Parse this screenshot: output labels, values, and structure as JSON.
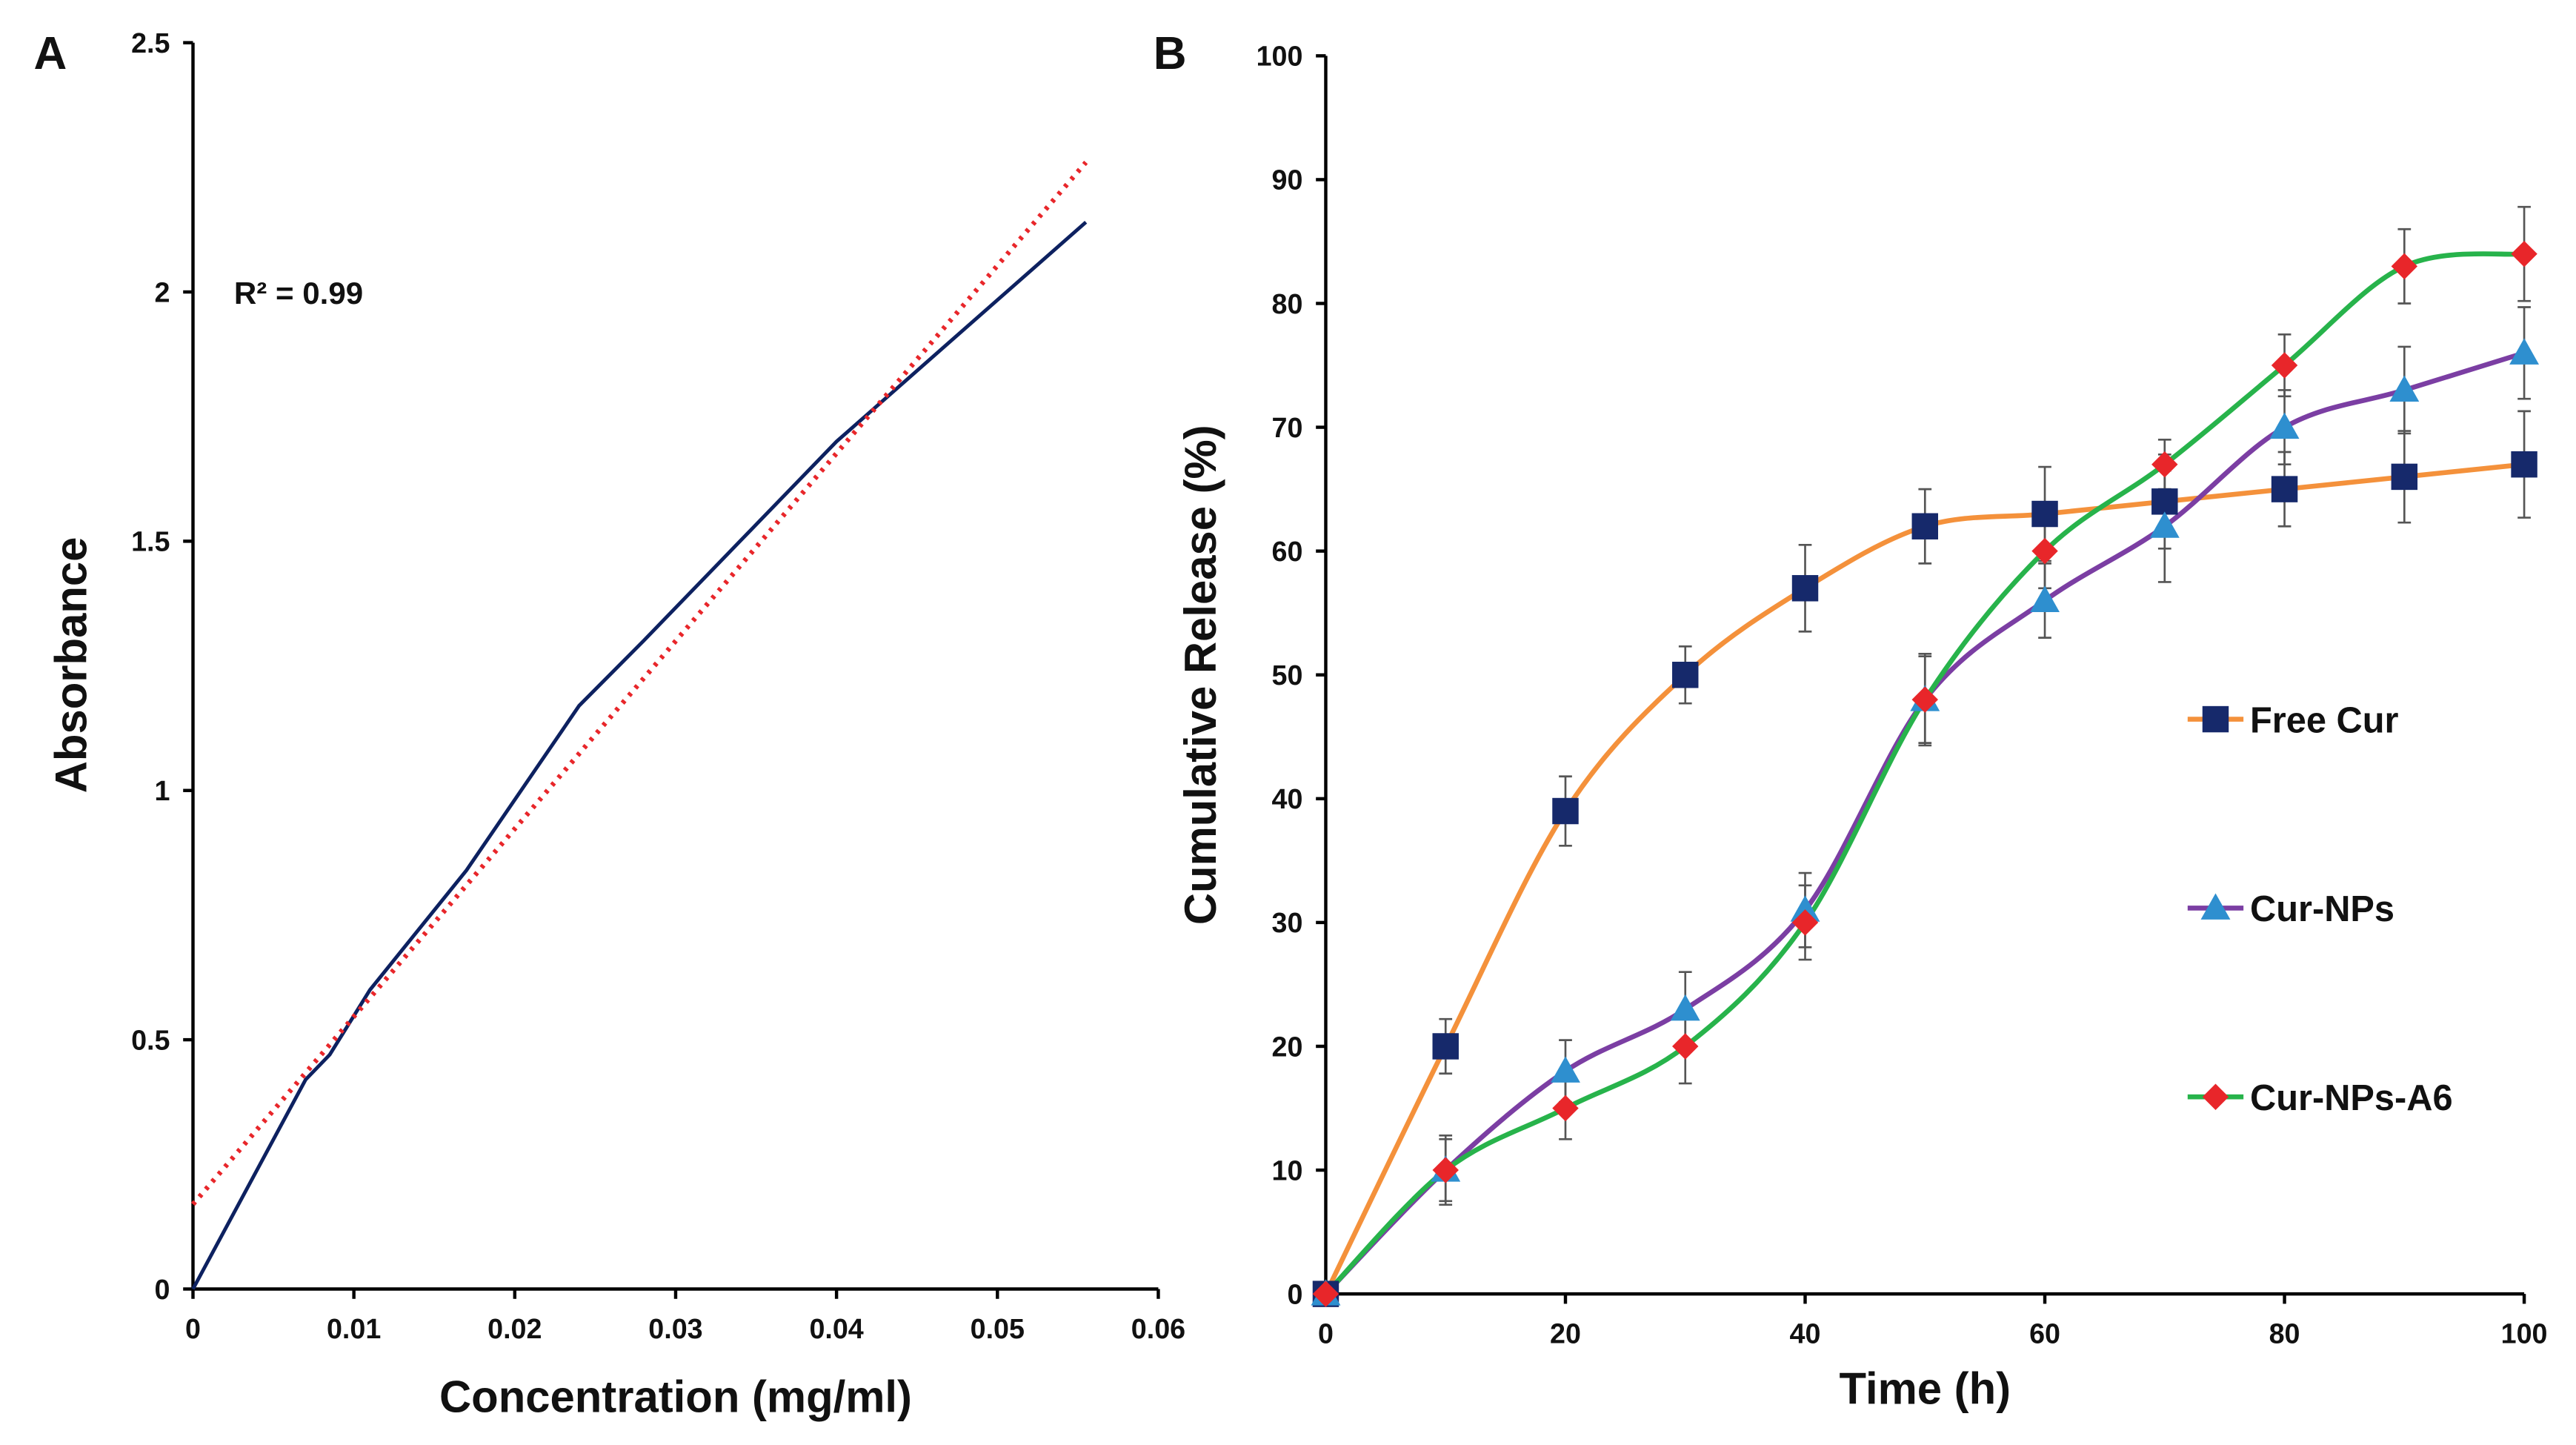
{
  "chart_data": [
    {
      "type": "line",
      "label": "A",
      "xlabel": "Concentration (mg/ml)",
      "ylabel": "Absorbance",
      "annotation": "R² = 0.99",
      "xlim": [
        0,
        0.06
      ],
      "xticks": [
        0,
        0.01,
        0.02,
        0.03,
        0.04,
        0.05,
        0.06
      ],
      "ylim": [
        0,
        2.5
      ],
      "yticks": [
        0,
        0.5,
        1,
        1.5,
        2,
        2.5
      ],
      "series": [
        {
          "color": "#0d2160",
          "style": "solid",
          "x": [
            0,
            0.007,
            0.0085,
            0.011,
            0.017,
            0.024,
            0.028,
            0.034,
            0.04,
            0.0555
          ],
          "values": [
            0,
            0.42,
            0.47,
            0.6,
            0.84,
            1.17,
            1.3,
            1.5,
            1.7,
            2.14
          ]
        },
        {
          "color": "#e8262a",
          "style": "dotted",
          "x": [
            0,
            0.0555
          ],
          "values": [
            0.17,
            2.26
          ]
        }
      ]
    },
    {
      "type": "line",
      "label": "B",
      "xlabel": "Time (h)",
      "ylabel": "Cumulative Release (%)",
      "legend": "right",
      "xlim": [
        0,
        100
      ],
      "xticks": [
        0,
        20,
        40,
        60,
        80,
        100
      ],
      "ylim": [
        0,
        100
      ],
      "yticks": [
        0,
        10,
        20,
        30,
        40,
        50,
        60,
        70,
        80,
        90,
        100
      ],
      "x": [
        0,
        10,
        20,
        30,
        40,
        50,
        60,
        70,
        80,
        90,
        100
      ],
      "series": [
        {
          "name": "Free Cur",
          "color": "#f4913b",
          "marker_color": "#16296b",
          "marker": "square",
          "smooth": true,
          "values": [
            0,
            20,
            39,
            50,
            57,
            62,
            63,
            64,
            65,
            66,
            67
          ],
          "errors": [
            0,
            2.2,
            2.8,
            2.3,
            3.5,
            3,
            3.8,
            3.8,
            3,
            3.7,
            4.3
          ]
        },
        {
          "name": "Cur-NPs",
          "color": "#7b3ea3",
          "marker_color": "#2e8fcf",
          "marker": "triangle",
          "smooth": true,
          "values": [
            0,
            10,
            18,
            23,
            31,
            48,
            56,
            62,
            70,
            73,
            76
          ],
          "errors": [
            0,
            2.5,
            2.5,
            3,
            3,
            3.5,
            3,
            4.5,
            3,
            3.5,
            3.7
          ]
        },
        {
          "name": "Cur-NPs-A6",
          "color": "#27b34b",
          "marker_color": "#e8262a",
          "marker": "diamond",
          "smooth": true,
          "values": [
            0,
            10,
            15,
            20,
            30,
            48,
            60,
            67,
            75,
            83,
            84
          ],
          "errors": [
            0,
            2.8,
            2.5,
            3,
            3,
            3.7,
            3,
            2,
            2.5,
            3,
            3.8
          ]
        }
      ]
    }
  ]
}
